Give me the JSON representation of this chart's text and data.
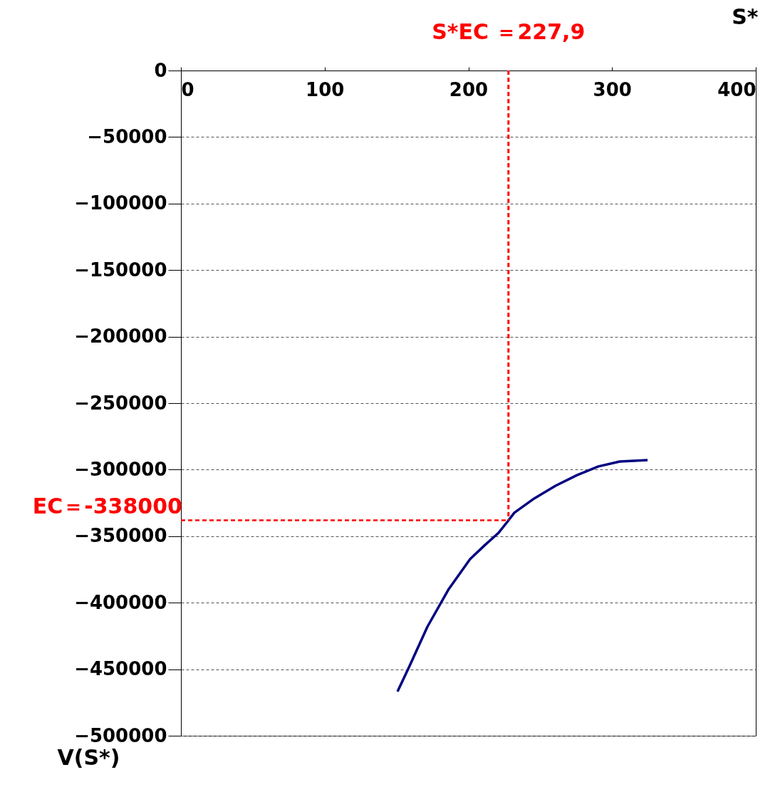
{
  "chart_data": {
    "type": "line",
    "xlabel": "S*",
    "ylabel": "V(S*)",
    "xlim": [
      0,
      400
    ],
    "xticks": [
      0,
      100,
      200,
      300,
      400
    ],
    "ylim": [
      -500000,
      0
    ],
    "yticks": [
      -500000,
      -450000,
      -400000,
      -350000,
      -300000,
      -250000,
      -200000,
      -150000,
      -100000,
      -50000,
      0
    ],
    "grid": "y",
    "marker": "none",
    "line_style": "solid",
    "x": [
      150.7,
      159.1,
      171.5,
      186.4,
      201.2,
      211.2,
      221.1,
      227.0,
      232.0,
      245.8,
      260.7,
      275.6,
      290.5,
      305.3,
      324.7
    ],
    "series": [
      {
        "color": "#000080",
        "values": [
          -466800,
          -447500,
          -418100,
          -389700,
          -367200,
          -357000,
          -347400,
          -339400,
          -332400,
          -321700,
          -312100,
          -304100,
          -297600,
          -293900,
          -292800
        ]
      }
    ],
    "ref_lines": [
      {
        "axis": "x",
        "value": 227.9,
        "label": "S*EC ＝227,9",
        "color": "#ff0000",
        "line_style": "dashed"
      },
      {
        "axis": "y",
        "value": -338000,
        "label": "EC＝-338000",
        "color": "#ff0000",
        "line_style": "dashed"
      }
    ]
  }
}
